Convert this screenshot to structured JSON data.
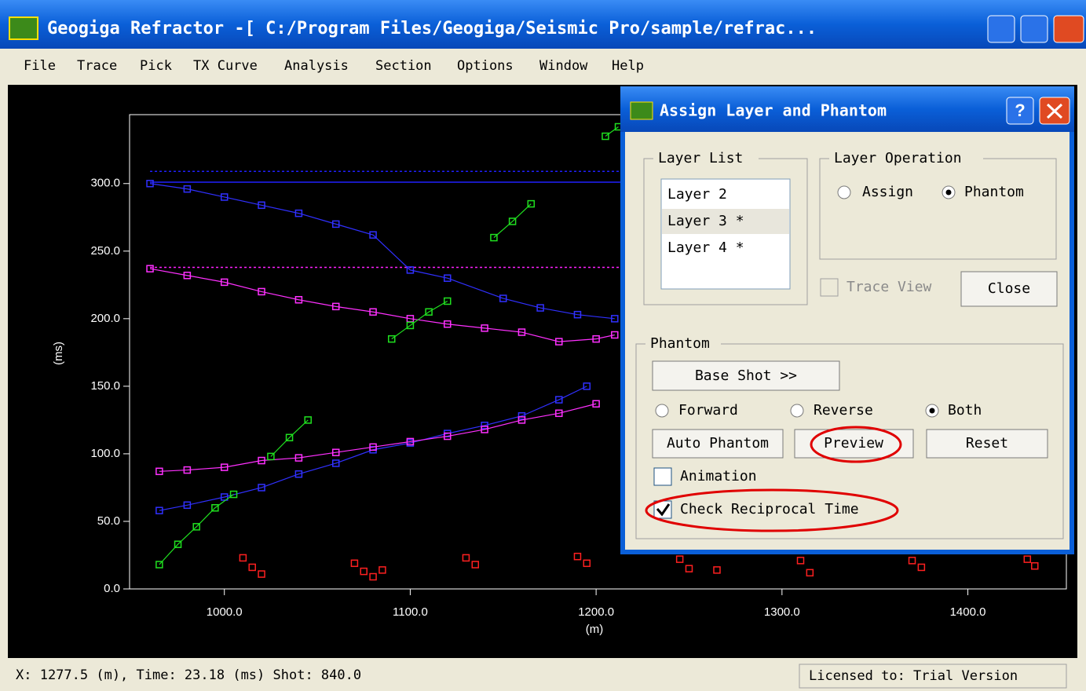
{
  "window": {
    "title": "Geogiga Refractor -[ C:/Program Files/Geogiga/Seismic Pro/sample/refrac..."
  },
  "menu": [
    "File",
    "Trace",
    "Pick",
    "TX Curve",
    "Analysis",
    "Section",
    "Options",
    "Window",
    "Help"
  ],
  "chart": {
    "type": "scatter",
    "xlabel": "(m)",
    "ylabel": "(ms)",
    "xlim": [
      949,
      1453
    ],
    "ylim": [
      0,
      351
    ],
    "xticks": [
      {
        "value": 1000,
        "label": "1000.0"
      },
      {
        "value": 1100,
        "label": "1100.0"
      },
      {
        "value": 1200,
        "label": "1200.0"
      },
      {
        "value": 1300,
        "label": "1300.0"
      },
      {
        "value": 1400,
        "label": "1400.0"
      }
    ],
    "yticks": [
      {
        "value": 0,
        "label": "0.0"
      },
      {
        "value": 50,
        "label": "50.0"
      },
      {
        "value": 100,
        "label": "100.0"
      },
      {
        "value": 150,
        "label": "150.0"
      },
      {
        "value": 200,
        "label": "200.0"
      },
      {
        "value": 250,
        "label": "250.0"
      },
      {
        "value": 300,
        "label": "300.0"
      }
    ],
    "hlines": [
      {
        "y": 309,
        "x": [
          960,
          1215
        ],
        "color": "#2020ff",
        "dashed": true
      },
      {
        "y": 301,
        "x": [
          960,
          1215
        ],
        "color": "#2020ff",
        "dashed": false
      },
      {
        "y": 238,
        "x": [
          960,
          1215
        ],
        "color": "#ff20ff",
        "dashed": true
      }
    ],
    "series": [
      {
        "color": "#3030ff",
        "line": true,
        "x": [
          960,
          980,
          1000,
          1020,
          1040,
          1060,
          1080,
          1100,
          1120,
          1150,
          1170,
          1190,
          1210
        ],
        "y": [
          300,
          296,
          290,
          284,
          278,
          270,
          262,
          236,
          230,
          215,
          208,
          203,
          200
        ]
      },
      {
        "color": "#ff30ff",
        "line": true,
        "x": [
          960,
          980,
          1000,
          1020,
          1040,
          1060,
          1080,
          1100,
          1120,
          1140,
          1160,
          1180,
          1200,
          1210
        ],
        "y": [
          237,
          232,
          227,
          220,
          214,
          209,
          205,
          200,
          196,
          193,
          190,
          183,
          185,
          188
        ]
      },
      {
        "color": "#3030ff",
        "line": true,
        "x": [
          965,
          980,
          1000,
          1020,
          1040,
          1060,
          1080,
          1100,
          1120,
          1140,
          1160,
          1180,
          1195
        ],
        "y": [
          58,
          62,
          68,
          75,
          85,
          93,
          103,
          108,
          115,
          121,
          128,
          140,
          150
        ]
      },
      {
        "color": "#ff30ff",
        "line": true,
        "x": [
          965,
          980,
          1000,
          1020,
          1040,
          1060,
          1080,
          1100,
          1120,
          1140,
          1160,
          1180,
          1200
        ],
        "y": [
          87,
          88,
          90,
          95,
          97,
          101,
          105,
          109,
          113,
          118,
          125,
          130,
          137
        ]
      },
      {
        "color": "#20e020",
        "line": true,
        "x": [
          965,
          975,
          985,
          995,
          1005
        ],
        "y": [
          18,
          33,
          46,
          60,
          70
        ]
      },
      {
        "color": "#20e020",
        "line": true,
        "x": [
          1025,
          1035,
          1045
        ],
        "y": [
          98,
          112,
          125
        ]
      },
      {
        "color": "#20e020",
        "line": true,
        "x": [
          1090,
          1100,
          1110,
          1120
        ],
        "y": [
          185,
          195,
          205,
          213
        ]
      },
      {
        "color": "#20e020",
        "line": true,
        "x": [
          1145,
          1155,
          1165
        ],
        "y": [
          260,
          272,
          285
        ]
      },
      {
        "color": "#20e020",
        "line": true,
        "x": [
          1205,
          1212
        ],
        "y": [
          335,
          342
        ]
      },
      {
        "color": "#ff2020",
        "line": false,
        "x": [
          1010,
          1015,
          1020,
          1070,
          1075,
          1080,
          1085,
          1130,
          1135,
          1190,
          1195,
          1245,
          1250,
          1265,
          1310,
          1315,
          1370,
          1375,
          1432,
          1436
        ],
        "y": [
          23,
          16,
          11,
          19,
          13,
          9,
          14,
          23,
          18,
          24,
          19,
          22,
          15,
          14,
          21,
          12,
          21,
          16,
          22,
          17
        ]
      }
    ]
  },
  "dialog": {
    "title": "Assign Layer and Phantom",
    "layer_list": {
      "label": "Layer List",
      "items": [
        "Layer 2",
        "Layer 3 *",
        "Layer 4 *"
      ]
    },
    "layer_operation": {
      "label": "Layer Operation",
      "options": [
        "Assign",
        "Phantom"
      ]
    },
    "trace_view": "Trace View",
    "close": "Close",
    "phantom": {
      "label": "Phantom",
      "base_shot": "Base Shot >>",
      "directions": [
        "Forward",
        "Reverse",
        "Both"
      ],
      "auto_phantom": "Auto Phantom",
      "preview": "Preview",
      "reset": "Reset",
      "animation": "Animation",
      "check_reciprocal": "Check Reciprocal Time"
    }
  },
  "status": {
    "position": "X: 1277.5 (m), Time: 23.18 (ms) Shot: 840.0",
    "license": "Licensed to: Trial Version"
  }
}
